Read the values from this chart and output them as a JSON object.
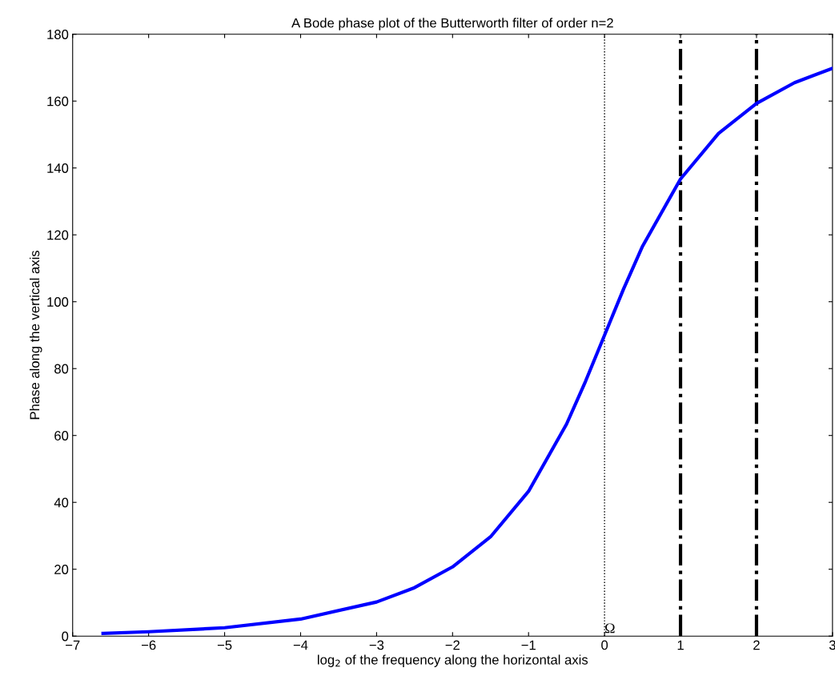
{
  "chart_data": {
    "type": "line",
    "title": "A Bode phase plot of the Butterworth filter of order n=2",
    "xlabel": "log$_{2}$ of the frequency along the horizontal axis",
    "ylabel": "Phase along the vertical axis",
    "series": [
      {
        "color": "#0000ff",
        "x": [
          -6.6,
          -6,
          -5,
          -4,
          -3,
          -2.5,
          -2,
          -1.5,
          -1,
          -0.5,
          -0.25,
          0,
          0.25,
          0.5,
          1,
          1.5,
          2,
          2.5,
          3
        ],
        "values": [
          0.8,
          1.3,
          2.5,
          5.1,
          10.2,
          14.5,
          20.7,
          29.7,
          43.3,
          63.4,
          76.2,
          90,
          103.8,
          116.6,
          136.7,
          150.3,
          159.3,
          165.5,
          169.8
        ]
      }
    ],
    "xlim": [
      -7,
      3
    ],
    "ylim": [
      0,
      180
    ],
    "xticks": [
      -7,
      -6,
      -5,
      -4,
      -3,
      -2,
      -1,
      0,
      1,
      2,
      3
    ],
    "yticks": [
      0,
      20,
      40,
      60,
      80,
      100,
      120,
      140,
      160,
      180
    ],
    "grid": false,
    "marker": "none",
    "line_style": "solid",
    "ref_lines": [
      {
        "axis": "x",
        "value": 0,
        "label": "Ω",
        "color": "#000000",
        "line_style": "dotted"
      },
      {
        "axis": "x",
        "value": 1,
        "label": null,
        "color": "#000000",
        "line_style": "dashdot"
      },
      {
        "axis": "x",
        "value": 2,
        "label": null,
        "color": "#000000",
        "line_style": "dashdot"
      }
    ]
  }
}
